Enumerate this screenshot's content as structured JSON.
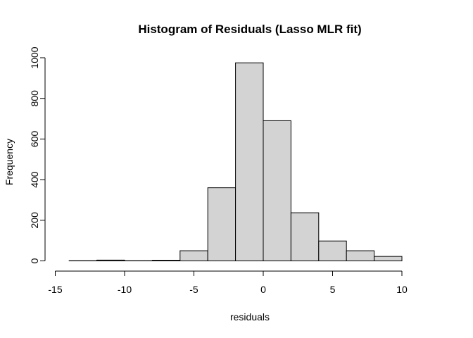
{
  "chart_data": {
    "type": "bar",
    "title": "Histogram of Residuals (Lasso MLR fit)",
    "xlabel": "residuals",
    "ylabel": "Frequency",
    "bin_edges": [
      -14,
      -12,
      -10,
      -8,
      -6,
      -4,
      -2,
      0,
      2,
      4,
      6,
      8,
      10
    ],
    "values": [
      1,
      4,
      1,
      3,
      50,
      360,
      975,
      690,
      237,
      98,
      50,
      22
    ],
    "xlim": [
      -14,
      12
    ],
    "ylim": [
      0,
      1000
    ],
    "xticks": [
      -15,
      -10,
      -5,
      0,
      5,
      10
    ],
    "yticks": [
      0,
      200,
      400,
      600,
      800,
      1000
    ],
    "bar_color": "#d3d3d3",
    "grid": false,
    "legend": "none"
  }
}
